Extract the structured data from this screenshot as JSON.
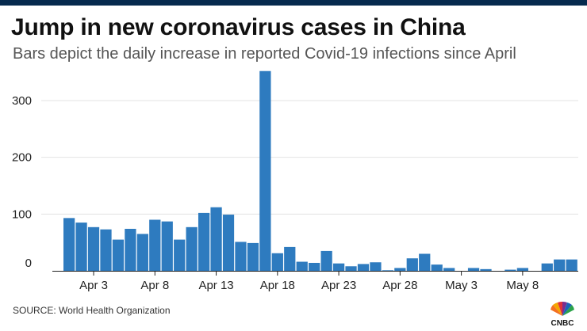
{
  "header": {
    "title": "Jump in new coronavirus cases in China",
    "subtitle": "Bars depict the daily increase in reported Covid-19 infections since April"
  },
  "footer": {
    "source": "SOURCE: World Health Organization",
    "logo_text": "CNBC"
  },
  "colors": {
    "bar": "#2e7bbf",
    "top_bar": "#062a4e",
    "grid": "#e3e3e3"
  },
  "chart_data": {
    "type": "bar",
    "categories": [
      "Apr 1",
      "Apr 2",
      "Apr 3",
      "Apr 4",
      "Apr 5",
      "Apr 6",
      "Apr 7",
      "Apr 8",
      "Apr 9",
      "Apr 10",
      "Apr 11",
      "Apr 12",
      "Apr 13",
      "Apr 14",
      "Apr 15",
      "Apr 16",
      "Apr 17",
      "Apr 18",
      "Apr 19",
      "Apr 20",
      "Apr 21",
      "Apr 22",
      "Apr 23",
      "Apr 24",
      "Apr 25",
      "Apr 26",
      "Apr 27",
      "Apr 28",
      "Apr 29",
      "Apr 30",
      "May 1",
      "May 2",
      "May 3",
      "May 4",
      "May 5",
      "May 6",
      "May 7",
      "May 8",
      "May 9",
      "May 10",
      "May 11",
      "May 12"
    ],
    "values": [
      93,
      85,
      77,
      73,
      55,
      74,
      65,
      90,
      87,
      55,
      77,
      102,
      112,
      99,
      51,
      49,
      352,
      31,
      42,
      16,
      14,
      35,
      13,
      8,
      12,
      15,
      1,
      5,
      22,
      30,
      11,
      5,
      0,
      5,
      3,
      0,
      2,
      5,
      0,
      13,
      20,
      20
    ],
    "xticks": [
      "Apr 3",
      "Apr 8",
      "Apr 13",
      "Apr 18",
      "Apr 23",
      "Apr 28",
      "May 3",
      "May 8"
    ],
    "yticks": [
      0,
      100,
      200,
      300
    ],
    "ylim": [
      0,
      360
    ],
    "grid": true,
    "legend": "none"
  }
}
